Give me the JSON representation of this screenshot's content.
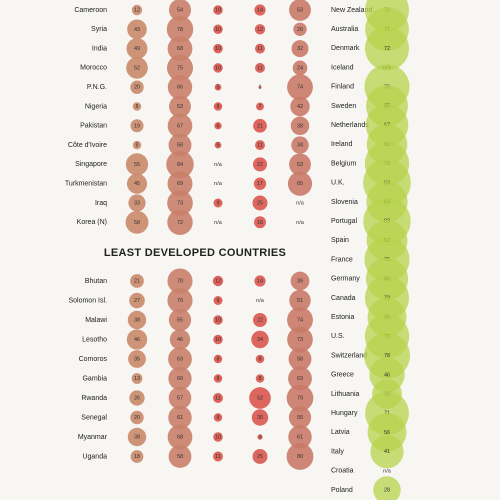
{
  "heading": "LEAST DEVELOPED COUNTRIES",
  "column_colors": [
    "#c98a6a",
    "#c9806a",
    "#d9534a",
    "#d9574f",
    "#c97a68"
  ],
  "right_color": "#b8d34c",
  "left_top": {
    "rows": [
      {
        "name": "Cameroon",
        "values": [
          12,
          54,
          10,
          14,
          53
        ]
      },
      {
        "name": "Syria",
        "values": [
          43,
          78,
          10,
          12,
          20
        ]
      },
      {
        "name": "India",
        "values": [
          49,
          68,
          10,
          11,
          32
        ]
      },
      {
        "name": "Morocco",
        "values": [
          52,
          75,
          10,
          11,
          24
        ]
      },
      {
        "name": "P.N.G.",
        "values": [
          20,
          66,
          5,
          1,
          74
        ]
      },
      {
        "name": "Nigeria",
        "values": [
          8,
          53,
          8,
          7,
          42
        ]
      },
      {
        "name": "Pakistan",
        "values": [
          19,
          67,
          6,
          21,
          38
        ]
      },
      {
        "name": "Côte d'Ivoire",
        "values": [
          8,
          58,
          5,
          11,
          34
        ]
      },
      {
        "name": "Singapore",
        "values": [
          55,
          84,
          "n/a",
          22,
          53
        ]
      },
      {
        "name": "Turkmenistan",
        "values": [
          45,
          69,
          "n/a",
          17,
          65
        ]
      },
      {
        "name": "Iraq",
        "values": [
          33,
          73,
          9,
          25,
          "n/a"
        ]
      },
      {
        "name": "Korea (N)",
        "values": [
          58,
          72,
          "n/a",
          16,
          "n/a"
        ]
      }
    ]
  },
  "left_bottom": {
    "rows": [
      {
        "name": "Bhutan",
        "values": [
          21,
          70,
          12,
          14,
          39
        ]
      },
      {
        "name": "Solomon Isl.",
        "values": [
          27,
          70,
          9,
          "n/a",
          51
        ]
      },
      {
        "name": "Malawi",
        "values": [
          38,
          55,
          10,
          22,
          74
        ]
      },
      {
        "name": "Lesotho",
        "values": [
          46,
          46,
          10,
          34,
          73
        ]
      },
      {
        "name": "Comoros",
        "values": [
          35,
          63,
          8,
          8,
          58
        ]
      },
      {
        "name": "Gambia",
        "values": [
          13,
          60,
          8,
          8,
          63
        ]
      },
      {
        "name": "Rwanda",
        "values": [
          26,
          57,
          11,
          52,
          79
        ]
      },
      {
        "name": "Senegal",
        "values": [
          20,
          61,
          8,
          30,
          55
        ]
      },
      {
        "name": "Myanmar",
        "values": [
          38,
          68,
          10,
          3,
          61
        ]
      },
      {
        "name": "Uganda",
        "values": [
          18,
          58,
          11,
          25,
          80
        ]
      }
    ]
  },
  "right": {
    "rows": [
      {
        "name": "New Zealand",
        "value": 72
      },
      {
        "name": "Australia",
        "value": 71
      },
      {
        "name": "Denmark",
        "value": 72
      },
      {
        "name": "Iceland",
        "value": "n/a"
      },
      {
        "name": "Finland",
        "value": 75
      },
      {
        "name": "Sweden",
        "value": 65
      },
      {
        "name": "Netherlands",
        "value": 67
      },
      {
        "name": "Ireland",
        "value": 61
      },
      {
        "name": "Belgium",
        "value": 73
      },
      {
        "name": "U.K.",
        "value": 84
      },
      {
        "name": "Slovenia",
        "value": 63
      },
      {
        "name": "Portugal",
        "value": 83
      },
      {
        "name": "Spain",
        "value": 62
      },
      {
        "name": "France",
        "value": 75
      },
      {
        "name": "Germany",
        "value": 66
      },
      {
        "name": "Canada",
        "value": 72
      },
      {
        "name": "Estonia",
        "value": 56
      },
      {
        "name": "U.S.",
        "value": 73
      },
      {
        "name": "Switzerland",
        "value": 78
      },
      {
        "name": "Greece",
        "value": 46
      },
      {
        "name": "Lithuania",
        "value": 33
      },
      {
        "name": "Hungary",
        "value": 71
      },
      {
        "name": "Latvia",
        "value": 56
      },
      {
        "name": "Italy",
        "value": 41
      },
      {
        "name": "Croatia",
        "value": "n/a"
      },
      {
        "name": "Poland",
        "value": 28
      }
    ]
  }
}
